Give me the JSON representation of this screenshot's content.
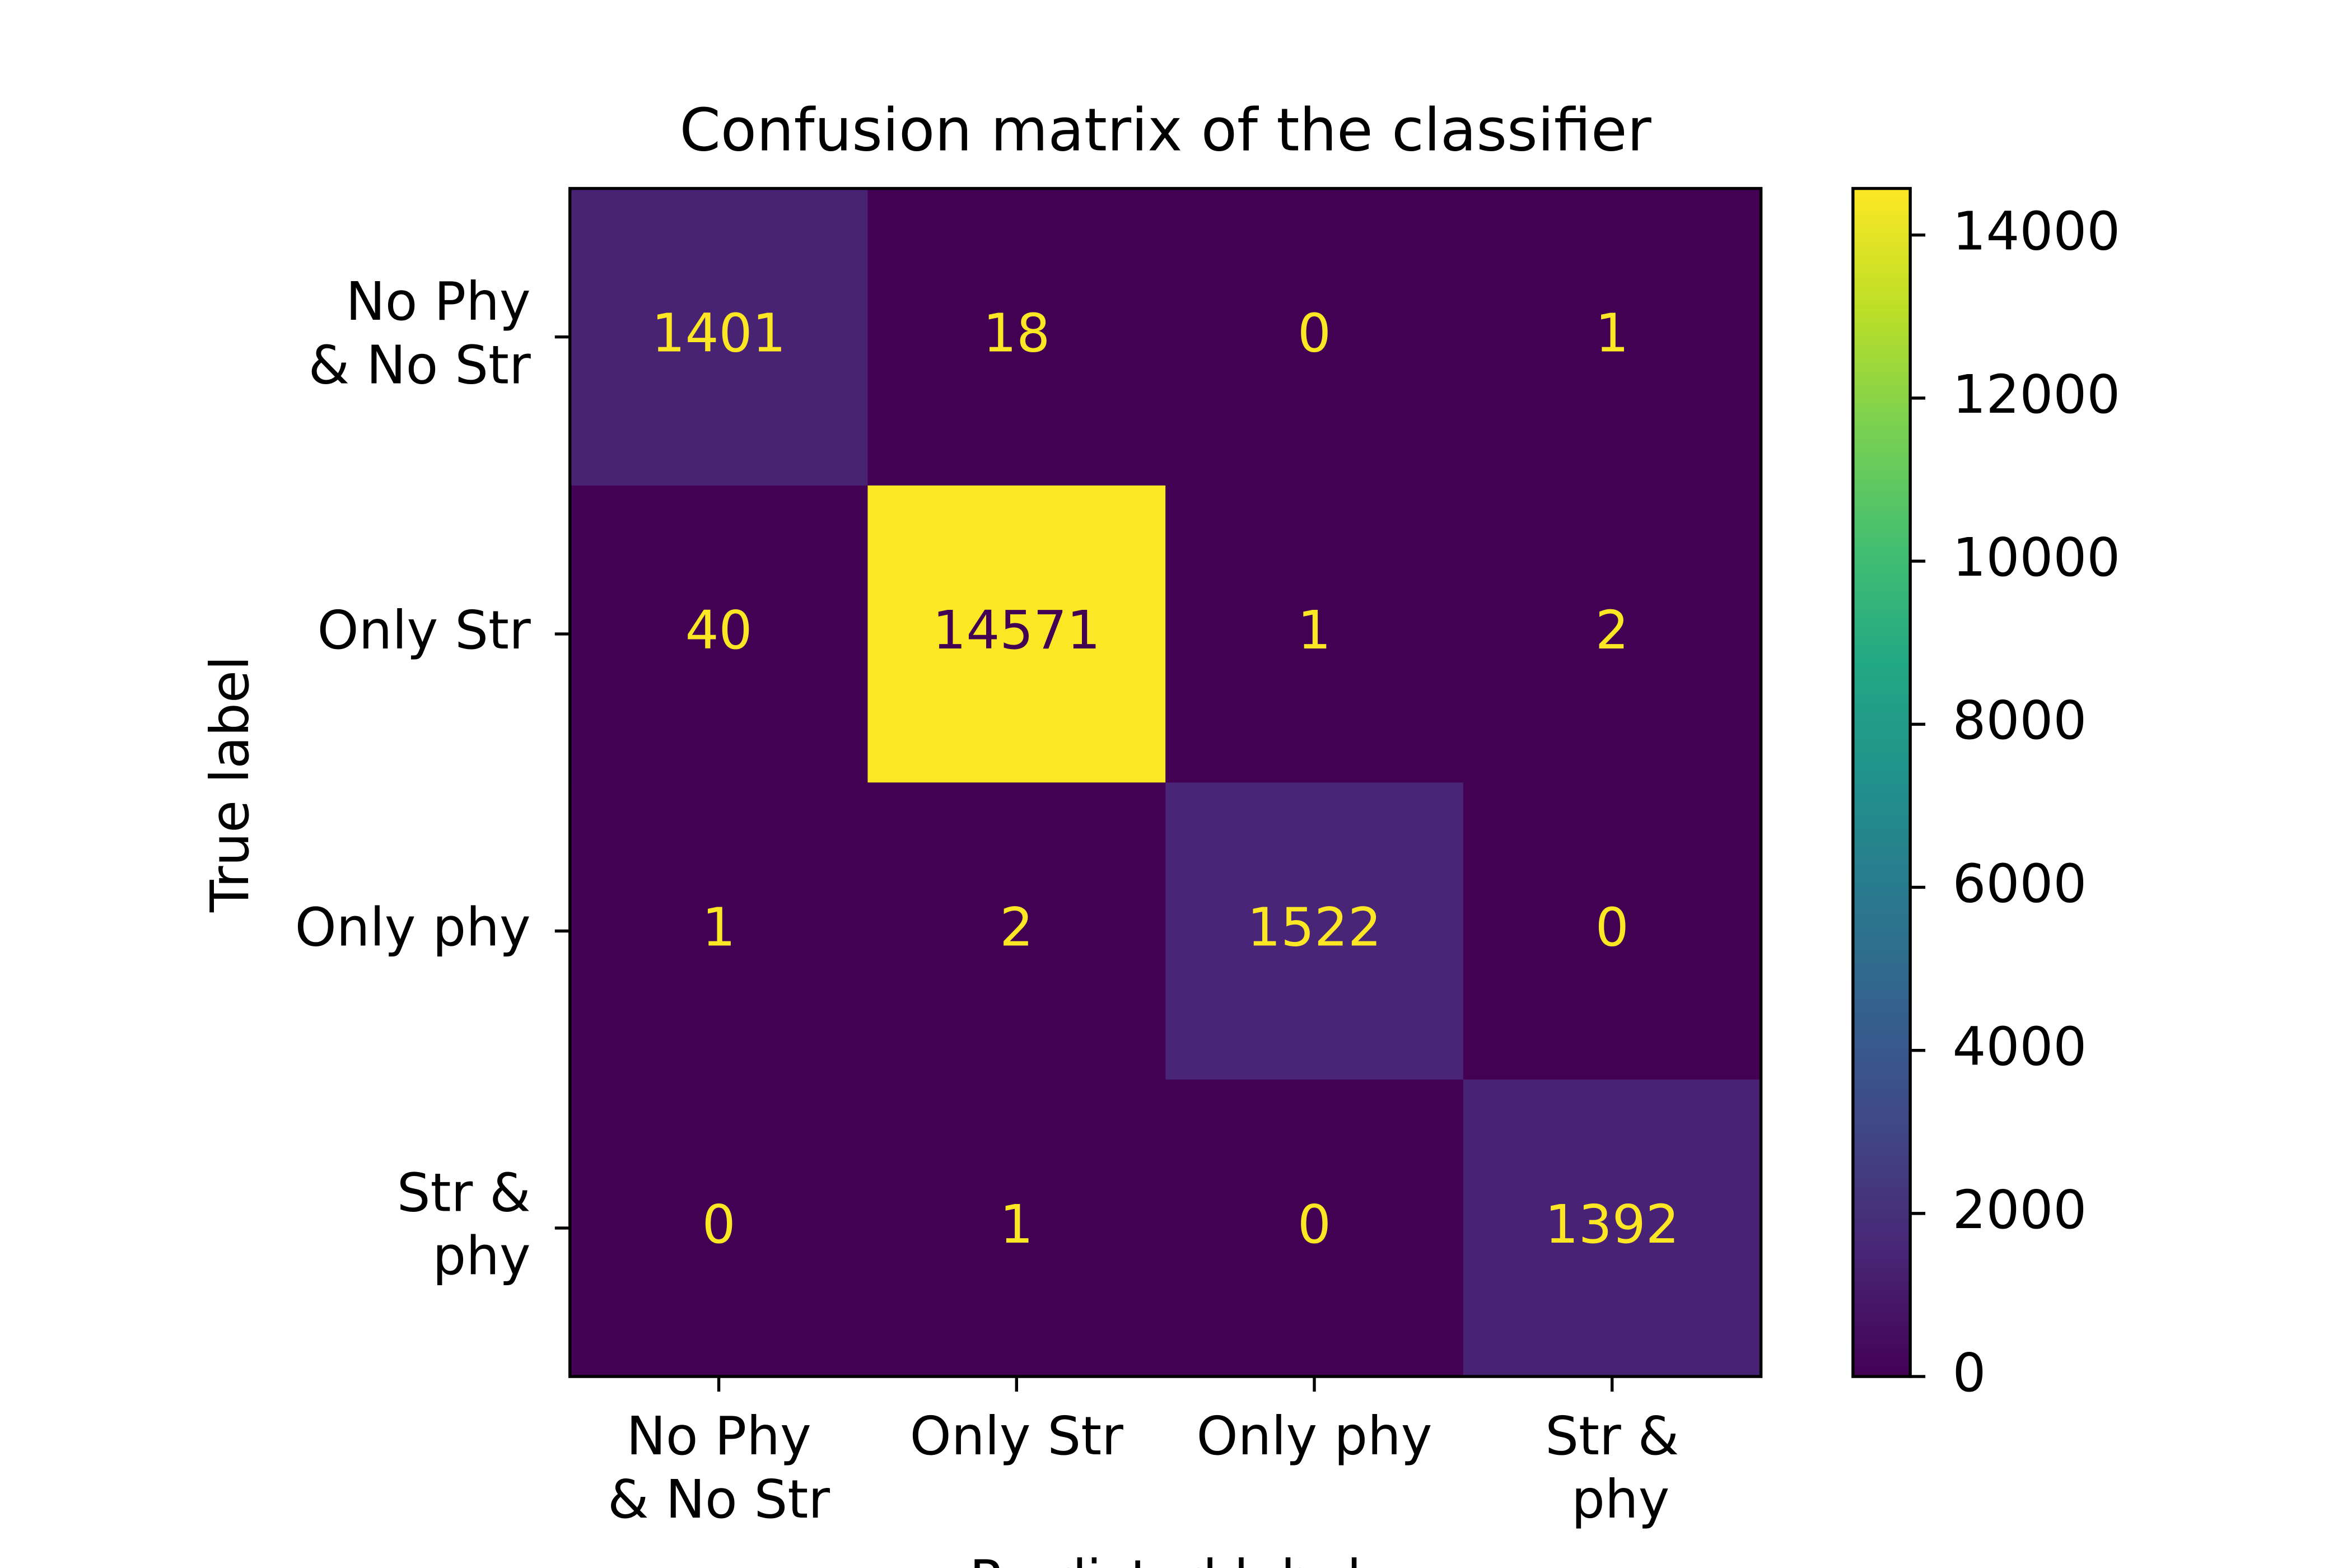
{
  "chart_data": {
    "type": "heatmap",
    "title": "Confusion matrix of the classifier",
    "x_label": "Predicted label",
    "y_label": "True label",
    "x_categories": [
      "No Phy\n& No Str",
      "Only Str",
      "Only phy",
      "Str &\n phy"
    ],
    "y_categories": [
      "No Phy\n& No Str",
      "Only Str",
      "Only phy",
      "Str &\n phy"
    ],
    "values": [
      [
        1401,
        18,
        0,
        1
      ],
      [
        40,
        14571,
        1,
        2
      ],
      [
        1,
        2,
        1522,
        0
      ],
      [
        0,
        1,
        0,
        1392
      ]
    ],
    "colormap": "viridis",
    "clim": [
      0,
      14571
    ],
    "cticks": [
      0,
      2000,
      4000,
      6000,
      8000,
      10000,
      12000,
      14000
    ]
  }
}
